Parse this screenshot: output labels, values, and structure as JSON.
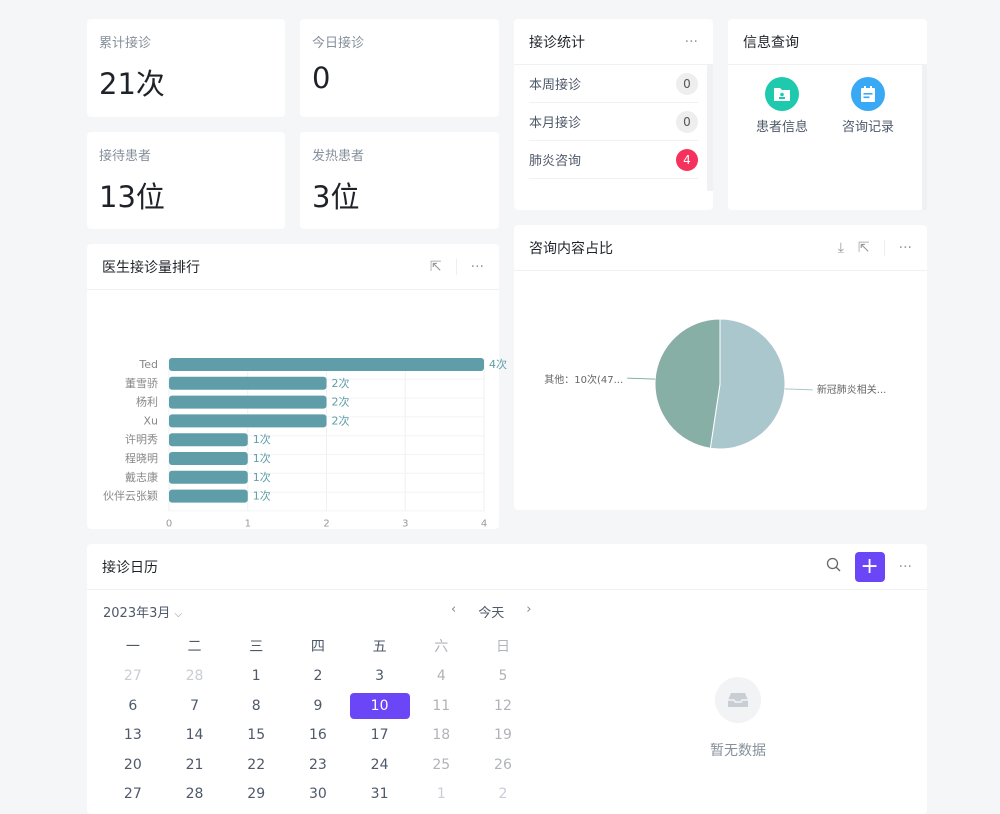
{
  "stats": [
    {
      "label": "累计接诊",
      "value": "21次"
    },
    {
      "label": "今日接诊",
      "value": "0"
    },
    {
      "label": "接待患者",
      "value": "13位"
    },
    {
      "label": "发热患者",
      "value": "3位"
    }
  ],
  "visit_stats": {
    "title": "接诊统计",
    "items": [
      {
        "label": "本周接诊",
        "count": "0"
      },
      {
        "label": "本月接诊",
        "count": "0"
      },
      {
        "label": "肺炎咨询",
        "count": "4"
      }
    ]
  },
  "info_query": {
    "title": "信息查询",
    "items": [
      {
        "label": "患者信息",
        "icon": "patient-folder-icon",
        "color": "#1ec9ae"
      },
      {
        "label": "咨询记录",
        "icon": "calendar-record-icon",
        "color": "#3aa9f5"
      }
    ]
  },
  "ranking": {
    "title": "医生接诊量排行"
  },
  "consult": {
    "title": "咨询内容占比"
  },
  "calendar": {
    "title": "接诊日历",
    "month": "2023年3月",
    "today": "今天",
    "weekdays": [
      "一",
      "二",
      "三",
      "四",
      "五",
      "六",
      "日"
    ],
    "weeks": [
      [
        "27",
        "28",
        "1",
        "2",
        "3",
        "4",
        "5"
      ],
      [
        "6",
        "7",
        "8",
        "9",
        "10",
        "11",
        "12"
      ],
      [
        "13",
        "14",
        "15",
        "16",
        "17",
        "18",
        "19"
      ],
      [
        "20",
        "21",
        "22",
        "23",
        "24",
        "25",
        "26"
      ],
      [
        "27",
        "28",
        "29",
        "30",
        "31",
        "1",
        "2"
      ]
    ],
    "selected": "10",
    "empty_text": "暂无数据",
    "accent": "#6b46f6"
  },
  "chart_data": [
    {
      "type": "bar",
      "orientation": "horizontal",
      "categories": [
        "Ted",
        "董雪骄",
        "杨利",
        "Xu",
        "许明秀",
        "程晓明",
        "戴志康",
        "伙伴云张颖"
      ],
      "values": [
        4,
        2,
        2,
        2,
        1,
        1,
        1,
        1
      ],
      "data_labels": [
        "4次",
        "2次",
        "2次",
        "2次",
        "1次",
        "1次",
        "1次",
        "1次"
      ],
      "xlim": [
        0,
        4
      ],
      "xticks": [
        "0",
        "1",
        "2",
        "3",
        "4"
      ],
      "grid": true,
      "color": "#5f9ea8"
    },
    {
      "type": "pie",
      "slices": [
        {
          "label": "新冠肺炎相关...",
          "value": 11,
          "color": "#aac7cd"
        },
        {
          "label": "其他：10次(47...",
          "value": 10,
          "color": "#87afa6"
        }
      ]
    }
  ]
}
